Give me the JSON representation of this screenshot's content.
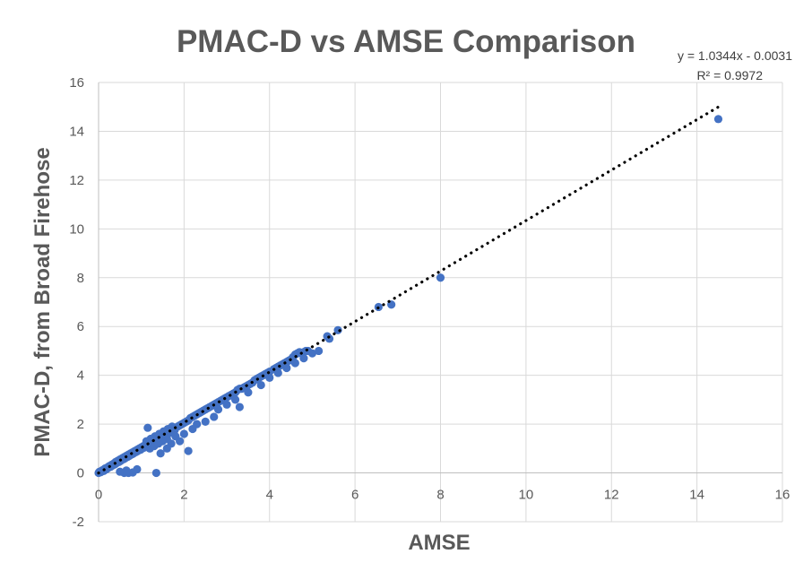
{
  "chart_data": {
    "type": "scatter",
    "title": "PMAC-D vs AMSE Comparison",
    "xlabel": "AMSE",
    "ylabel": "PMAC-D, from Broad Firehose",
    "xlim": [
      0,
      16
    ],
    "ylim": [
      -2,
      16
    ],
    "xticks": [
      "0",
      "2",
      "4",
      "6",
      "8",
      "10",
      "12",
      "14",
      "16"
    ],
    "yticks": [
      "-2",
      "0",
      "2",
      "4",
      "6",
      "8",
      "10",
      "12",
      "14",
      "16"
    ],
    "grid": true,
    "marker_color": "#4472c4",
    "trendline": {
      "equation": "y = 1.0344x - 0.0031",
      "r_squared": "R² = 0.9972",
      "slope": 1.0344,
      "intercept": -0.0031,
      "x_range": [
        0,
        14.5
      ],
      "style": "dotted",
      "color": "#000000"
    },
    "series": [
      {
        "points": [
          [
            0.0,
            0.0
          ],
          [
            0.02,
            0.05
          ],
          [
            0.05,
            0.03
          ],
          [
            0.08,
            0.1
          ],
          [
            0.1,
            0.12
          ],
          [
            0.12,
            0.08
          ],
          [
            0.15,
            0.18
          ],
          [
            0.18,
            0.15
          ],
          [
            0.2,
            0.22
          ],
          [
            0.22,
            0.2
          ],
          [
            0.25,
            0.28
          ],
          [
            0.28,
            0.25
          ],
          [
            0.3,
            0.33
          ],
          [
            0.32,
            0.3
          ],
          [
            0.35,
            0.38
          ],
          [
            0.38,
            0.35
          ],
          [
            0.4,
            0.45
          ],
          [
            0.42,
            0.4
          ],
          [
            0.45,
            0.5
          ],
          [
            0.48,
            0.45
          ],
          [
            0.5,
            0.55
          ],
          [
            0.52,
            0.5
          ],
          [
            0.55,
            0.6
          ],
          [
            0.58,
            0.56
          ],
          [
            0.6,
            0.65
          ],
          [
            0.62,
            0.6
          ],
          [
            0.65,
            0.7
          ],
          [
            0.68,
            0.66
          ],
          [
            0.7,
            0.75
          ],
          [
            0.72,
            0.7
          ],
          [
            0.75,
            0.8
          ],
          [
            0.78,
            0.76
          ],
          [
            0.8,
            0.85
          ],
          [
            0.82,
            0.8
          ],
          [
            0.85,
            0.9
          ],
          [
            0.88,
            0.86
          ],
          [
            0.9,
            0.95
          ],
          [
            0.92,
            0.9
          ],
          [
            0.95,
            1.0
          ],
          [
            0.98,
            0.95
          ],
          [
            1.0,
            1.05
          ],
          [
            1.02,
            1.0
          ],
          [
            1.05,
            1.1
          ],
          [
            1.08,
            1.05
          ],
          [
            1.1,
            1.15
          ],
          [
            1.12,
            1.3
          ],
          [
            1.15,
            1.2
          ],
          [
            1.18,
            1.15
          ],
          [
            1.2,
            1.25
          ],
          [
            1.22,
            1.4
          ],
          [
            1.25,
            1.3
          ],
          [
            1.28,
            1.25
          ],
          [
            1.3,
            1.35
          ],
          [
            1.32,
            1.5
          ],
          [
            1.35,
            1.4
          ],
          [
            1.38,
            1.35
          ],
          [
            1.4,
            1.45
          ],
          [
            1.42,
            1.6
          ],
          [
            1.45,
            1.5
          ],
          [
            1.48,
            1.45
          ],
          [
            1.5,
            1.55
          ],
          [
            1.52,
            1.7
          ],
          [
            1.55,
            1.6
          ],
          [
            1.58,
            1.55
          ],
          [
            1.6,
            1.65
          ],
          [
            1.62,
            1.8
          ],
          [
            1.65,
            1.7
          ],
          [
            1.68,
            1.65
          ],
          [
            1.7,
            1.75
          ],
          [
            1.72,
            1.9
          ],
          [
            1.75,
            1.8
          ],
          [
            1.78,
            1.75
          ],
          [
            1.8,
            1.85
          ],
          [
            1.85,
            1.9
          ],
          [
            1.9,
            1.95
          ],
          [
            1.95,
            2.0
          ],
          [
            2.0,
            2.05
          ],
          [
            2.05,
            2.1
          ],
          [
            2.1,
            2.15
          ],
          [
            2.15,
            2.25
          ],
          [
            2.2,
            2.3
          ],
          [
            2.25,
            2.35
          ],
          [
            2.3,
            2.4
          ],
          [
            2.35,
            2.45
          ],
          [
            2.4,
            2.5
          ],
          [
            2.45,
            2.55
          ],
          [
            2.5,
            2.6
          ],
          [
            2.55,
            2.65
          ],
          [
            2.6,
            2.7
          ],
          [
            2.65,
            2.75
          ],
          [
            2.7,
            2.8
          ],
          [
            2.75,
            2.85
          ],
          [
            2.8,
            2.9
          ],
          [
            2.85,
            2.95
          ],
          [
            2.9,
            3.0
          ],
          [
            2.95,
            3.05
          ],
          [
            3.0,
            3.1
          ],
          [
            3.05,
            3.15
          ],
          [
            3.1,
            3.2
          ],
          [
            3.15,
            3.25
          ],
          [
            3.2,
            3.3
          ],
          [
            3.25,
            3.4
          ],
          [
            3.3,
            3.45
          ],
          [
            3.35,
            3.45
          ],
          [
            3.4,
            3.5
          ],
          [
            3.45,
            3.55
          ],
          [
            3.5,
            3.6
          ],
          [
            3.55,
            3.65
          ],
          [
            3.6,
            3.7
          ],
          [
            3.65,
            3.8
          ],
          [
            3.7,
            3.85
          ],
          [
            3.75,
            3.9
          ],
          [
            3.8,
            3.95
          ],
          [
            3.85,
            4.0
          ],
          [
            3.9,
            4.05
          ],
          [
            3.95,
            4.1
          ],
          [
            4.0,
            4.15
          ],
          [
            4.1,
            4.25
          ],
          [
            4.15,
            4.3
          ],
          [
            4.2,
            4.35
          ],
          [
            4.25,
            4.4
          ],
          [
            4.3,
            4.45
          ],
          [
            4.35,
            4.5
          ],
          [
            4.4,
            4.55
          ],
          [
            4.45,
            4.6
          ],
          [
            4.5,
            4.65
          ],
          [
            4.55,
            4.75
          ],
          [
            4.6,
            4.85
          ],
          [
            4.65,
            4.9
          ],
          [
            4.7,
            4.95
          ],
          [
            4.75,
            4.9
          ],
          [
            4.8,
            4.95
          ],
          [
            4.85,
            5.0
          ],
          [
            4.9,
            5.0
          ],
          [
            0.6,
            0.0
          ],
          [
            0.7,
            0.0
          ],
          [
            0.8,
            0.02
          ],
          [
            0.5,
            0.05
          ],
          [
            0.65,
            0.1
          ],
          [
            0.9,
            0.15
          ],
          [
            1.35,
            0.0
          ],
          [
            1.45,
            0.8
          ],
          [
            1.6,
            1.0
          ],
          [
            1.7,
            1.2
          ],
          [
            1.9,
            1.3
          ],
          [
            1.6,
            1.4
          ],
          [
            2.0,
            1.6
          ],
          [
            2.2,
            1.8
          ],
          [
            2.5,
            2.1
          ],
          [
            2.1,
            0.9
          ],
          [
            2.7,
            2.3
          ],
          [
            2.8,
            2.6
          ],
          [
            3.0,
            2.8
          ],
          [
            3.2,
            3.0
          ],
          [
            3.3,
            2.7
          ],
          [
            3.5,
            3.3
          ],
          [
            3.8,
            3.6
          ],
          [
            4.0,
            3.9
          ],
          [
            4.2,
            4.1
          ],
          [
            4.4,
            4.3
          ],
          [
            4.6,
            4.5
          ],
          [
            4.8,
            4.7
          ],
          [
            5.0,
            4.9
          ],
          [
            1.15,
            1.85
          ],
          [
            1.2,
            1.0
          ],
          [
            1.3,
            1.1
          ],
          [
            1.4,
            1.2
          ],
          [
            1.5,
            1.3
          ],
          [
            1.8,
            1.5
          ],
          [
            2.3,
            2.0
          ],
          [
            5.15,
            5.0
          ],
          [
            5.35,
            5.6
          ],
          [
            5.4,
            5.5
          ],
          [
            5.6,
            5.85
          ],
          [
            6.55,
            6.8
          ],
          [
            6.85,
            6.9
          ],
          [
            8.0,
            8.0
          ],
          [
            14.5,
            14.5
          ]
        ]
      }
    ]
  }
}
